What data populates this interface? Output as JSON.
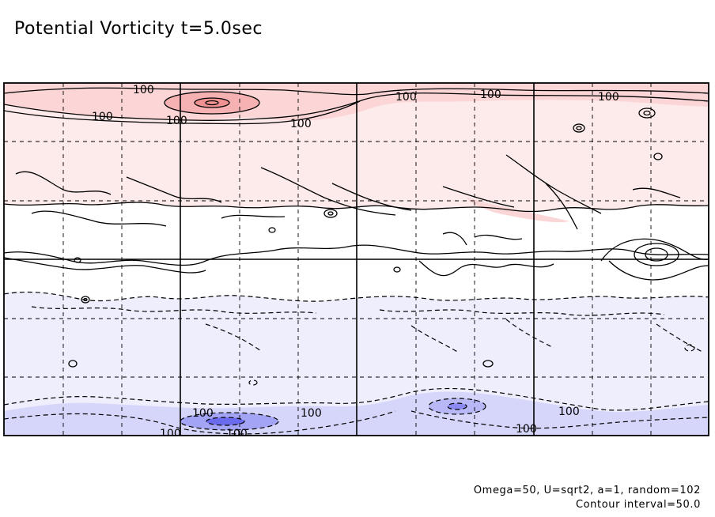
{
  "chart_data": {
    "type": "heatmap",
    "title": "Potential Vorticity t=5.0sec",
    "contour_labels": [
      "100",
      "100",
      "100",
      "100",
      "100",
      "100",
      "100",
      "100",
      "100",
      "100",
      "100",
      "100"
    ],
    "grid": true,
    "colors": {
      "positive_strong": "#f4a0a0",
      "positive_medium": "#fcd2d2",
      "positive_light": "#fde8e8",
      "neutral": "#ffffff",
      "negative_light": "#ececfc",
      "negative_medium": "#c8c8f8",
      "negative_strong": "#6b6bee",
      "contour": "#000000"
    }
  },
  "footer": {
    "params": "Omega=50, U=sqrt2, a=1, random=102",
    "interval": "Contour interval=50.0"
  }
}
